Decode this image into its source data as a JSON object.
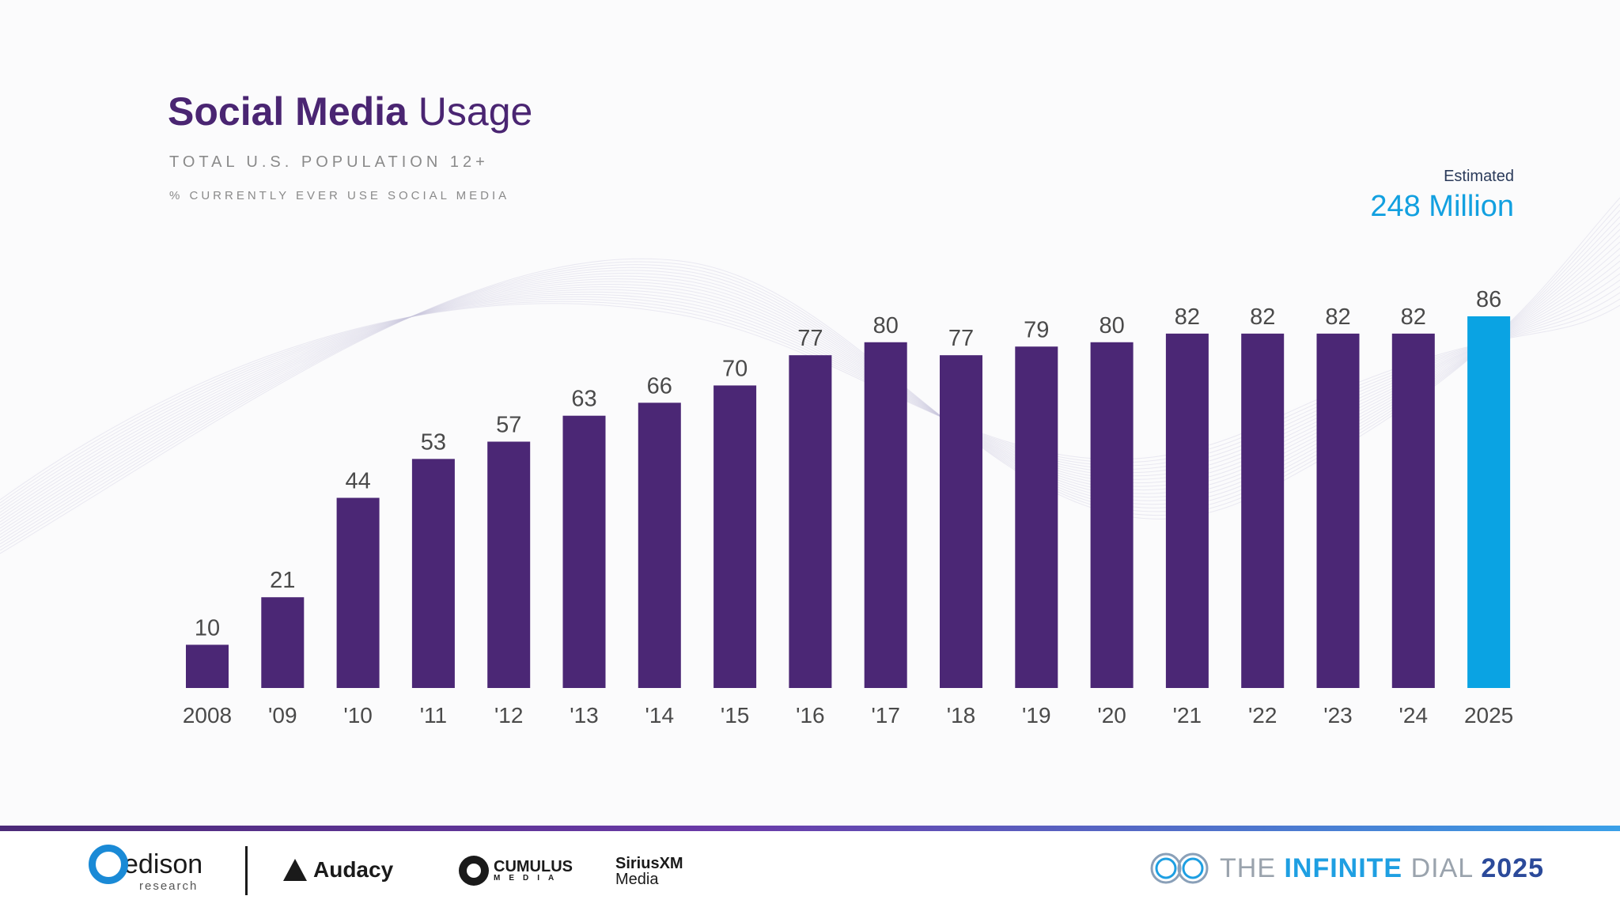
{
  "header": {
    "title_bold": "Social Media",
    "title_light": "Usage",
    "subtitle": "TOTAL U.S. POPULATION 12+",
    "subtitle2": "% CURRENTLY EVER USE SOCIAL MEDIA",
    "estimate_label": "Estimated",
    "estimate_value": "248 Million"
  },
  "chart_data": {
    "type": "bar",
    "categories": [
      "2008",
      "'09",
      "'10",
      "'11",
      "'12",
      "'13",
      "'14",
      "'15",
      "'16",
      "'17",
      "'18",
      "'19",
      "'20",
      "'21",
      "'22",
      "'23",
      "'24",
      "2025"
    ],
    "values": [
      10,
      21,
      44,
      53,
      57,
      63,
      66,
      70,
      77,
      80,
      77,
      79,
      80,
      82,
      82,
      82,
      82,
      86
    ],
    "title": "Social Media Usage",
    "xlabel": "",
    "ylabel": "",
    "ylim": [
      0,
      100
    ],
    "grid": false,
    "legend": "none",
    "colors": {
      "default": "#4b2775",
      "highlight": "#0aa3e3"
    },
    "highlight_index": 17
  },
  "footer": {
    "edison": "edison",
    "edison_sub": "research",
    "audacy": "Audacy",
    "cumulus": "CUMULUS",
    "cumulus_sub": "MEDIA",
    "sirius_top": "SiriusXM",
    "sirius_bottom": "Media",
    "dial_the": "THE",
    "dial_infinite": "INFINITE",
    "dial_dial": "DIAL",
    "dial_year": "2025"
  },
  "colors": {
    "title": "#4a2572",
    "accent_blue": "#12a0e0",
    "bar": "#4b2775",
    "bar_highlight": "#0aa3e3"
  }
}
